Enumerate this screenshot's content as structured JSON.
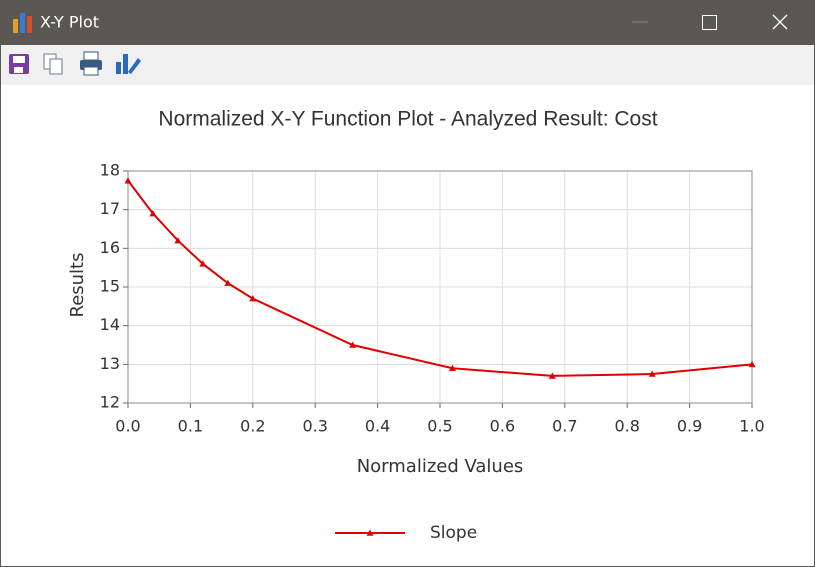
{
  "window": {
    "title": "X-Y Plot"
  },
  "chart_data": {
    "type": "line",
    "title": "Normalized X-Y Function Plot - Analyzed Result: Cost",
    "x_label": "Normalized Values",
    "y_label": "Results",
    "x": [
      0,
      0.04,
      0.08,
      0.12,
      0.16,
      0.2,
      0.36,
      0.52,
      0.68,
      0.84,
      1.0
    ],
    "series": [
      {
        "name": "Slope",
        "color": "#e00000",
        "values": [
          17.75,
          16.9,
          16.2,
          15.6,
          15.1,
          14.7,
          13.5,
          12.9,
          12.7,
          12.75,
          13.0
        ]
      }
    ],
    "xlim": [
      0,
      1
    ],
    "ylim": [
      12,
      18
    ],
    "xticks": [
      {
        "value": 0,
        "label": "0.0"
      },
      0.1,
      0.2,
      0.3,
      0.4,
      0.5,
      0.6,
      0.7,
      0.8,
      0.9,
      {
        "value": 1,
        "label": "1.0"
      }
    ],
    "yticks": [
      12,
      13,
      14,
      15,
      16,
      17,
      18
    ],
    "grid": true,
    "legend": "bottom",
    "marker": "triangle"
  }
}
